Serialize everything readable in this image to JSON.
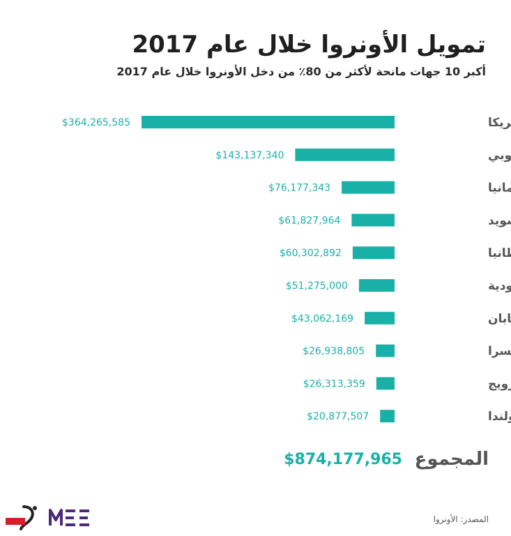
{
  "title": "تمويل الأونروا خلال عام 2017",
  "subtitle": "أكبر 10 جهات مانحة لأكثر من 80٪ من دخل الأونروا خلال عام 2017",
  "colors": {
    "bar": "#19b0a8",
    "value_text": "#19b0a8",
    "label_text": "#555555"
  },
  "chart_data": {
    "type": "bar",
    "orientation": "horizontal",
    "categories": [
      "أمريكا",
      "الاتحاد الأوروبي",
      "ألمانيا",
      "السويد",
      "بريطانيا",
      "السعودية",
      "اليابان",
      "سويسرا",
      "النرويج",
      "هولندا"
    ],
    "values": [
      364265585,
      143137340,
      76177343,
      61827964,
      60302892,
      51275000,
      43062169,
      26938805,
      26313359,
      20877507
    ],
    "value_labels": [
      "$364,265,585",
      "$143,137,340",
      "$76,177,343",
      "$61,827,964",
      "$60,302,892",
      "$51,275,000",
      "$43,062,169",
      "$26,938,805",
      "$26,313,359",
      "$20,877,507"
    ],
    "title": "تمويل الأونروا خلال عام 2017",
    "subtitle": "أكبر 10 جهات مانحة لأكثر من 80٪ من دخل الأونروا خلال عام 2017",
    "grid": false,
    "legend": "none"
  },
  "total": {
    "label": "المجموع",
    "value": "$874,177,965"
  },
  "source": "المصدر: الأونروا",
  "logos": {
    "mee": "MEE",
    "post": "بوست"
  }
}
